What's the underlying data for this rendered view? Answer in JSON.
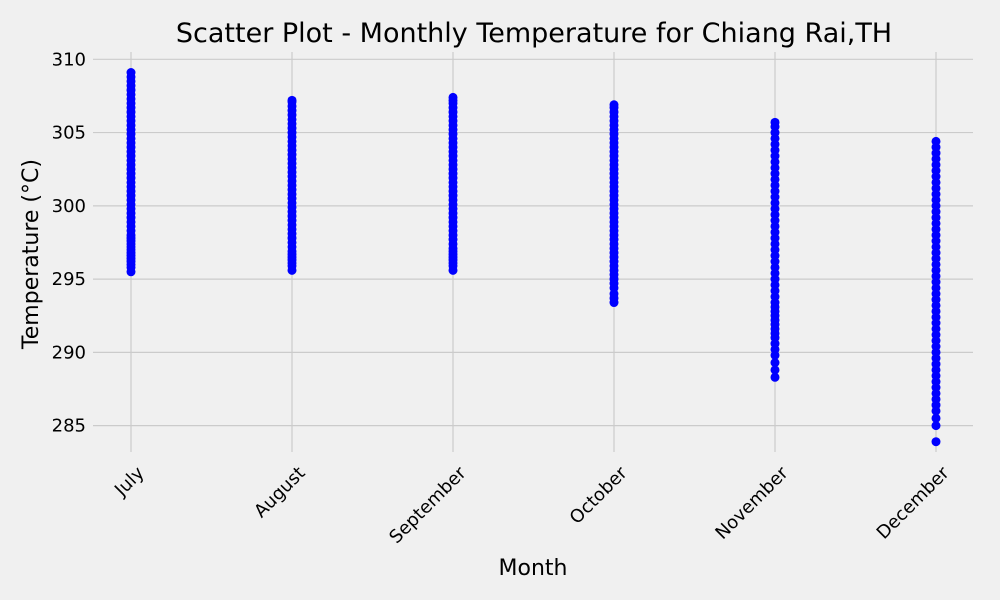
{
  "chart_data": {
    "type": "scatter",
    "title": "Scatter Plot - Monthly Temperature for Chiang Rai,TH",
    "xlabel": "Month",
    "ylabel": "Temperature (°C)",
    "categories": [
      "July",
      "August",
      "September",
      "October",
      "November",
      "December"
    ],
    "yticks": [
      285,
      290,
      295,
      300,
      305,
      310
    ],
    "ylim": [
      283.2,
      310.5
    ],
    "grid": true,
    "marker_color": "#0000ff",
    "series": [
      {
        "values": [
          [
            295.5,
            295.8,
            296.0,
            296.2,
            296.4,
            296.6,
            296.8,
            297.0,
            297.2,
            297.4,
            297.6,
            297.8,
            298.0,
            298.3,
            298.6,
            298.9,
            299.2,
            299.5,
            299.8,
            300.1,
            300.4,
            300.7,
            301.0,
            301.3,
            301.6,
            301.9,
            302.2,
            302.5,
            302.8,
            303.1,
            303.4,
            303.7,
            304.0,
            304.3,
            304.6,
            304.9,
            305.2,
            305.5,
            305.8,
            306.1,
            306.4,
            306.7,
            307.0,
            307.3,
            307.6,
            307.9,
            308.2,
            308.5,
            308.8,
            309.1
          ],
          [
            295.6,
            295.9,
            296.1,
            296.3,
            296.5,
            296.7,
            296.9,
            297.2,
            297.5,
            297.8,
            298.1,
            298.4,
            298.7,
            299.0,
            299.3,
            299.6,
            299.9,
            300.2,
            300.5,
            300.8,
            301.1,
            301.4,
            301.7,
            302.0,
            302.3,
            302.6,
            302.9,
            303.2,
            303.5,
            303.8,
            304.1,
            304.4,
            304.7,
            305.0,
            305.3,
            305.6,
            305.9,
            306.2,
            306.5,
            306.8,
            307.1,
            307.2
          ],
          [
            295.6,
            295.9,
            296.1,
            296.3,
            296.5,
            296.7,
            296.9,
            297.1,
            297.4,
            297.7,
            298.0,
            298.3,
            298.6,
            298.9,
            299.2,
            299.5,
            299.8,
            300.1,
            300.4,
            300.7,
            301.0,
            301.3,
            301.6,
            301.9,
            302.2,
            302.5,
            302.8,
            303.1,
            303.4,
            303.7,
            304.0,
            304.3,
            304.6,
            304.9,
            305.2,
            305.5,
            305.8,
            306.1,
            306.4,
            306.7,
            307.0,
            307.2,
            307.4
          ],
          [
            293.4,
            293.7,
            294.0,
            294.4,
            294.7,
            295.0,
            295.3,
            295.6,
            295.9,
            296.2,
            296.5,
            296.8,
            297.1,
            297.4,
            297.7,
            298.0,
            298.3,
            298.6,
            298.9,
            299.2,
            299.5,
            299.8,
            300.1,
            300.4,
            300.7,
            301.0,
            301.3,
            301.6,
            301.9,
            302.2,
            302.5,
            302.8,
            303.1,
            303.4,
            303.7,
            304.0,
            304.3,
            304.6,
            304.9,
            305.2,
            305.5,
            305.8,
            306.1,
            306.4,
            306.7,
            306.9
          ],
          [
            288.3,
            288.8,
            289.3,
            289.8,
            290.2,
            290.6,
            291.0,
            291.3,
            291.6,
            291.9,
            292.2,
            292.5,
            292.8,
            293.1,
            293.4,
            293.8,
            294.2,
            294.6,
            295.0,
            295.4,
            295.8,
            296.2,
            296.6,
            297.0,
            297.4,
            297.8,
            298.2,
            298.6,
            299.0,
            299.4,
            299.8,
            300.2,
            300.6,
            301.0,
            301.4,
            301.8,
            302.2,
            302.6,
            303.0,
            303.4,
            303.8,
            304.2,
            304.6,
            305.0,
            305.4,
            305.7
          ],
          [
            283.9,
            285.0,
            285.5,
            286.0,
            286.4,
            286.8,
            287.2,
            287.6,
            288.0,
            288.4,
            288.8,
            289.2,
            289.6,
            290.0,
            290.4,
            290.8,
            291.2,
            291.6,
            292.0,
            292.4,
            292.8,
            293.2,
            293.6,
            294.0,
            294.4,
            294.8,
            295.2,
            295.6,
            296.0,
            296.4,
            296.8,
            297.2,
            297.6,
            298.0,
            298.4,
            298.8,
            299.2,
            299.6,
            300.0,
            300.4,
            300.8,
            301.2,
            301.6,
            302.0,
            302.4,
            302.8,
            303.2,
            303.6,
            304.0,
            304.4
          ]
        ]
      }
    ]
  }
}
